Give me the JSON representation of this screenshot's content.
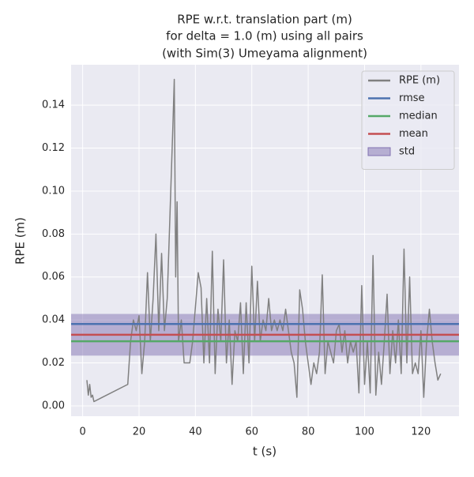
{
  "chart_data": {
    "type": "line",
    "title": [
      "RPE w.r.t. translation part (m)",
      "for delta = 1.0 (m) using all pairs",
      "(with Sim(3) Umeyama alignment)"
    ],
    "xlabel": "t (s)",
    "ylabel": "RPE (m)",
    "xlim": [
      -4.1,
      133.5
    ],
    "ylim": [
      -0.0048,
      0.1588
    ],
    "xticks": [
      0,
      20,
      40,
      60,
      80,
      100,
      120
    ],
    "yticks": [
      {
        "value": 0,
        "label": "0.00"
      },
      {
        "value": 0.02,
        "label": "0.02"
      },
      {
        "value": 0.04,
        "label": "0.04"
      },
      {
        "value": 0.06,
        "label": "0.06"
      },
      {
        "value": 0.08,
        "label": "0.08"
      },
      {
        "value": 0.1,
        "label": "0.10"
      },
      {
        "value": 0.12,
        "label": "0.12"
      },
      {
        "value": 0.14,
        "label": "0.14"
      }
    ],
    "grid": true,
    "legend": "upper right",
    "series": [
      {
        "name": "RPE (m)",
        "color": "#808080",
        "x": [
          1.5,
          2,
          2.5,
          3,
          3.5,
          4,
          16,
          17,
          18,
          19,
          20,
          21,
          22,
          23,
          24,
          25,
          26,
          27,
          28,
          29,
          30,
          31,
          32,
          32.5,
          33,
          33.5,
          34,
          35,
          36,
          38,
          39,
          40,
          41,
          42,
          43,
          44,
          45,
          46,
          47,
          48,
          49,
          50,
          51,
          52,
          53,
          54,
          55,
          56,
          57,
          58,
          59,
          60,
          61,
          62,
          63,
          64,
          65,
          66,
          67,
          68,
          69,
          70,
          71,
          72,
          73,
          74,
          75,
          76,
          77,
          78,
          79,
          80,
          81,
          82,
          83,
          84,
          85,
          86,
          87,
          88,
          89,
          90,
          91,
          92,
          93,
          94,
          95,
          96,
          97,
          98,
          99,
          100,
          101,
          102,
          103,
          104,
          105,
          106,
          107,
          108,
          109,
          110,
          111,
          112,
          113,
          114,
          115,
          116,
          117,
          118,
          119,
          120,
          121,
          122,
          123,
          124,
          125,
          126,
          127
        ],
        "values": [
          0.012,
          0.005,
          0.01,
          0.004,
          0.005,
          0.002,
          0.01,
          0.03,
          0.04,
          0.035,
          0.042,
          0.015,
          0.03,
          0.062,
          0.03,
          0.05,
          0.08,
          0.035,
          0.071,
          0.035,
          0.05,
          0.09,
          0.13,
          0.152,
          0.06,
          0.095,
          0.03,
          0.04,
          0.02,
          0.02,
          0.03,
          0.046,
          0.062,
          0.055,
          0.02,
          0.05,
          0.02,
          0.072,
          0.015,
          0.045,
          0.03,
          0.068,
          0.02,
          0.04,
          0.01,
          0.035,
          0.03,
          0.048,
          0.015,
          0.048,
          0.02,
          0.065,
          0.03,
          0.058,
          0.03,
          0.04,
          0.035,
          0.05,
          0.035,
          0.04,
          0.035,
          0.04,
          0.035,
          0.045,
          0.035,
          0.025,
          0.02,
          0.004,
          0.054,
          0.045,
          0.03,
          0.02,
          0.01,
          0.02,
          0.015,
          0.025,
          0.061,
          0.015,
          0.03,
          0.025,
          0.02,
          0.035,
          0.038,
          0.025,
          0.035,
          0.02,
          0.03,
          0.025,
          0.03,
          0.006,
          0.056,
          0.01,
          0.03,
          0.006,
          0.07,
          0.005,
          0.025,
          0.01,
          0.03,
          0.052,
          0.015,
          0.035,
          0.02,
          0.04,
          0.015,
          0.073,
          0.02,
          0.06,
          0.015,
          0.02,
          0.015,
          0.035,
          0.004,
          0.03,
          0.045,
          0.03,
          0.02,
          0.012,
          0.015
        ]
      }
    ],
    "stats": [
      {
        "name": "rmse",
        "color": "#4c72b0",
        "value": 0.0381
      },
      {
        "name": "median",
        "color": "#55a868",
        "value": 0.0301
      },
      {
        "name": "mean",
        "color": "#c44e52",
        "value": 0.0331
      }
    ],
    "std": {
      "name": "std",
      "color": "#8172b2",
      "value": 0.0097
    }
  }
}
